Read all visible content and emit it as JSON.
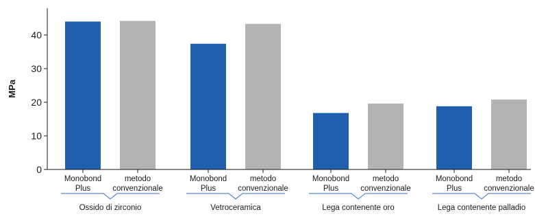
{
  "chart_data": {
    "type": "bar",
    "ylabel": "MPa",
    "ylim": [
      0,
      48
    ],
    "yticks": [
      0,
      10,
      20,
      30,
      40
    ],
    "grid": false,
    "colors": {
      "Monobond Plus": "#1f5fae",
      "metodo convenzionale": "#b3b3b3"
    },
    "groups": [
      {
        "name": "Ossido di zirconio",
        "bars": [
          {
            "label": [
              "Monobond",
              "Plus"
            ],
            "series": "Monobond Plus",
            "value": 44
          },
          {
            "label": [
              "metodo",
              "convenzionale"
            ],
            "series": "metodo convenzionale",
            "value": 44.2
          }
        ]
      },
      {
        "name": "Vetroceramica",
        "bars": [
          {
            "label": [
              "Monobond",
              "Plus"
            ],
            "series": "Monobond Plus",
            "value": 37.4
          },
          {
            "label": [
              "metodo",
              "convenzionale"
            ],
            "series": "metodo convenzionale",
            "value": 43.3
          }
        ]
      },
      {
        "name": "Lega contenente oro",
        "bars": [
          {
            "label": [
              "Monobond",
              "Plus"
            ],
            "series": "Monobond Plus",
            "value": 16.8
          },
          {
            "label": [
              "metodo",
              "convenzionale"
            ],
            "series": "metodo convenzionale",
            "value": 19.6
          }
        ]
      },
      {
        "name": "Lega contenente palladio",
        "bars": [
          {
            "label": [
              "Monobond",
              "Plus"
            ],
            "series": "Monobond Plus",
            "value": 18.8
          },
          {
            "label": [
              "metodo",
              "convenzionale"
            ],
            "series": "metodo convenzionale",
            "value": 20.8
          }
        ]
      }
    ]
  }
}
